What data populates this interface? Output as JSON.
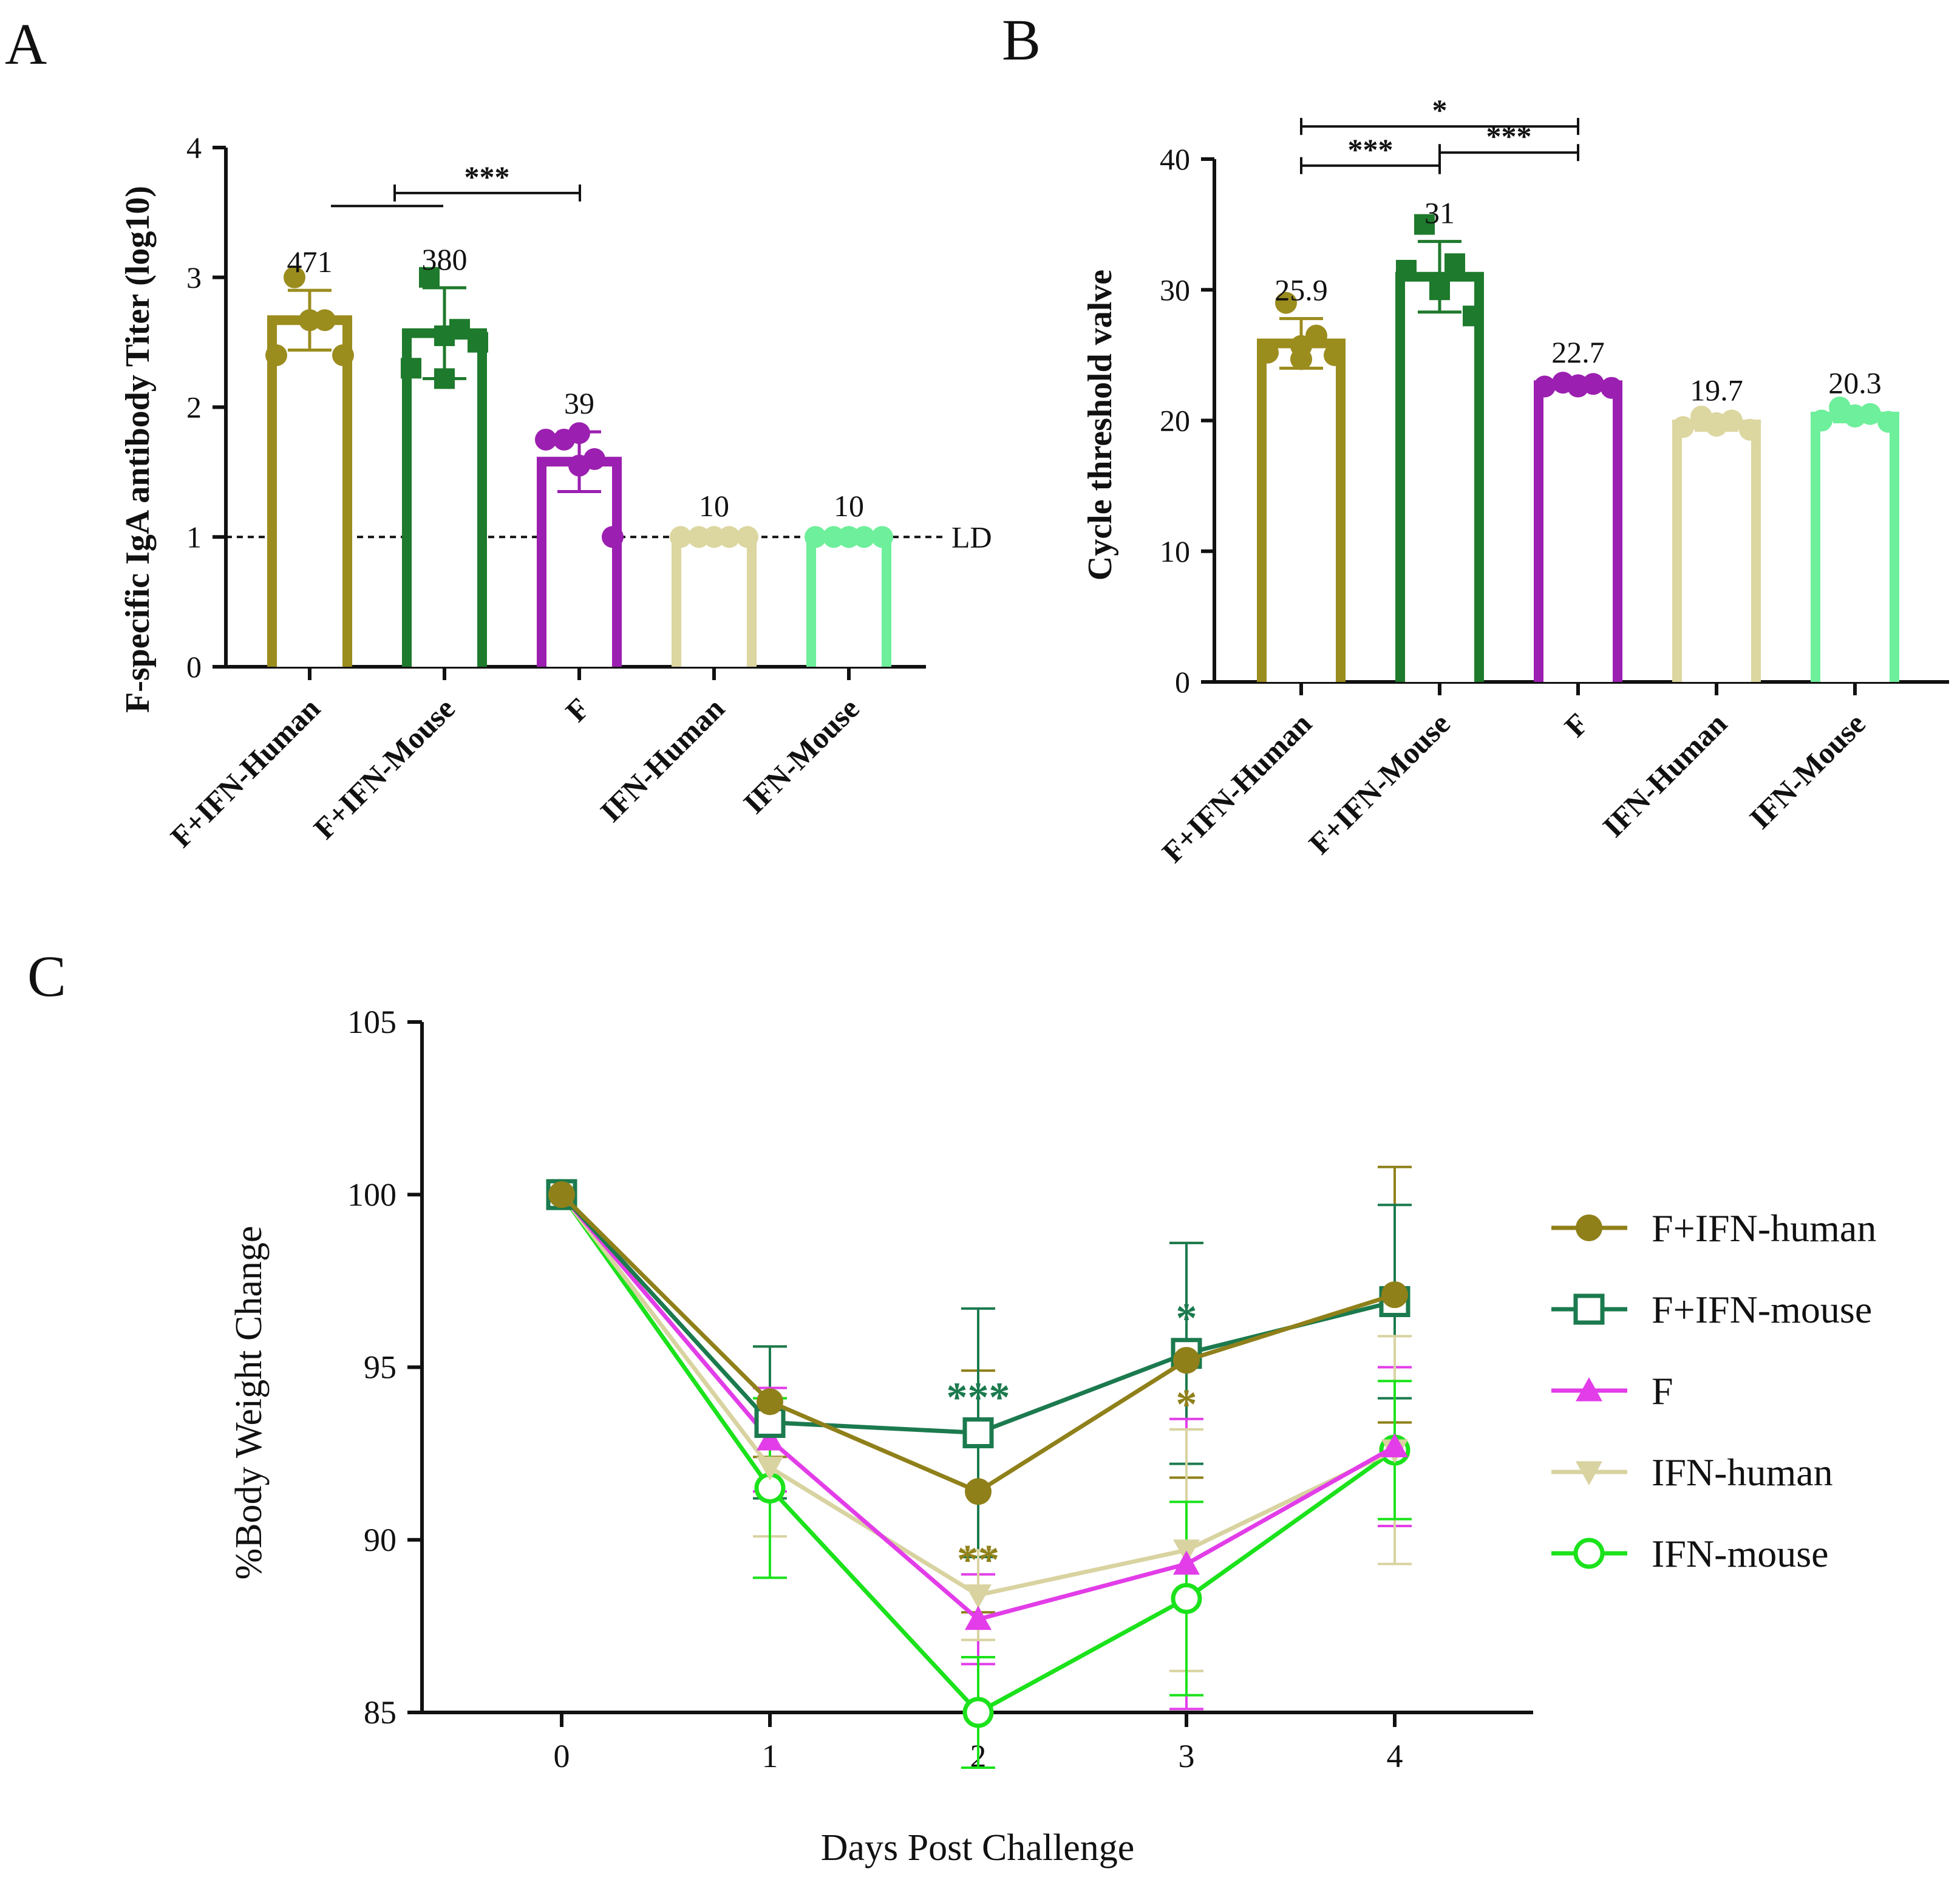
{
  "panels": {
    "A": {
      "letter": "A",
      "chart_data": {
        "type": "bar",
        "ylabel": "F-specific IgA antibody  Titer (log10)",
        "ylim": [
          0,
          4
        ],
        "yticks": [
          0,
          1,
          2,
          3,
          4
        ],
        "categories": [
          "F+IFN-Human",
          "F+IFN-Mouse",
          "F",
          "IFN-Human",
          "IFN-Mouse"
        ],
        "colors": [
          "#9b8c1e",
          "#1e7a2c",
          "#9b1fb0",
          "#dcd6a0",
          "#6eef9b"
        ],
        "values": [
          2.67,
          2.57,
          1.58,
          1.0,
          1.0
        ],
        "sd": [
          0.23,
          0.35,
          0.23,
          0.02,
          0.02
        ],
        "value_labels": [
          "471",
          "380",
          "39",
          "10",
          "10"
        ],
        "points": [
          [
            3.0,
            2.67,
            2.4,
            2.67,
            2.4,
            2.67
          ],
          [
            3.0,
            2.6,
            2.3,
            2.55,
            2.5,
            2.22
          ],
          [
            1.75,
            1.6,
            1.75,
            1.8,
            1.0,
            1.55
          ],
          [
            1.0,
            1.0,
            1.0,
            1.0,
            1.0,
            1.0
          ],
          [
            1.0,
            1.0,
            1.0,
            1.0,
            1.0,
            1.0
          ]
        ],
        "markers": [
          "circle",
          "square",
          "circle",
          "circle",
          "circle"
        ],
        "reference_line": {
          "value": 1,
          "label": "LD"
        },
        "significance": [
          {
            "from": 0,
            "to": 1,
            "label": "",
            "level": 3.55
          },
          {
            "from": 1,
            "to": 2,
            "label": "***",
            "level": 3.65
          }
        ]
      }
    },
    "B": {
      "letter": "B",
      "chart_data": {
        "type": "bar",
        "ylabel": "Cycle threshold valve",
        "ylim": [
          0,
          40
        ],
        "yticks": [
          0,
          10,
          20,
          30,
          40
        ],
        "categories": [
          "F+IFN-Human",
          "F+IFN-Mouse",
          "F",
          "IFN-Human",
          "IFN-Mouse"
        ],
        "colors": [
          "#9b8c1e",
          "#1e7a2c",
          "#9b1fb0",
          "#dcd6a0",
          "#6eef9b"
        ],
        "values": [
          25.9,
          31.0,
          22.7,
          19.7,
          20.3
        ],
        "sd": [
          1.9,
          2.7,
          0.35,
          0.45,
          0.4
        ],
        "value_labels": [
          "25.9",
          "31",
          "22.7",
          "19.7",
          "20.3"
        ],
        "points": [
          [
            29.0,
            26.5,
            25.2,
            24.7,
            25.0,
            25.7
          ],
          [
            35.0,
            32.0,
            31.5,
            30.2,
            28.0,
            30.0
          ],
          [
            22.9,
            22.8,
            22.6,
            22.7,
            22.5,
            22.6
          ],
          [
            20.3,
            20.0,
            19.5,
            19.8,
            19.3,
            19.6
          ],
          [
            21.0,
            20.5,
            20.0,
            20.3,
            19.9,
            20.4
          ]
        ],
        "markers": [
          "circle",
          "square",
          "circle",
          "circle",
          "circle"
        ],
        "significance": [
          {
            "from": 0,
            "to": 2,
            "label": "*",
            "level": 42.5
          },
          {
            "from": 0,
            "to": 1,
            "label": "***",
            "level": 39.5
          },
          {
            "from": 1,
            "to": 2,
            "label": "***",
            "level": 40.5
          }
        ]
      }
    },
    "C": {
      "letter": "C",
      "chart_data": {
        "type": "line",
        "xlabel": "Days Post Challenge",
        "ylabel": "%Body Weight Change",
        "x": [
          0,
          1,
          2,
          3,
          4
        ],
        "xticks": [
          "0",
          "1",
          "2",
          "3",
          "4"
        ],
        "ylim": [
          85,
          105
        ],
        "yticks": [
          85,
          90,
          95,
          100,
          105
        ],
        "legend_position": "right",
        "series": [
          {
            "name": "F+IFN-human",
            "color": "#8f801a",
            "marker": "circle-filled",
            "values": [
              100,
              94.0,
              91.4,
              95.2,
              97.1
            ],
            "sd": [
              0,
              1.6,
              3.5,
              3.4,
              3.7
            ],
            "annotations": [
              {
                "x": 2,
                "label": "**",
                "offset": -2.0
              },
              {
                "x": 3,
                "label": "*",
                "offset": -1.3
              }
            ]
          },
          {
            "name": "F+IFN-mouse",
            "color": "#1b7a4e",
            "marker": "square-open",
            "values": [
              100,
              93.4,
              93.1,
              95.4,
              96.9
            ],
            "sd": [
              0,
              2.2,
              3.6,
              3.2,
              2.8
            ],
            "annotations": [
              {
                "x": 2,
                "label": "***",
                "offset": 1.0
              },
              {
                "x": 3,
                "label": "*",
                "offset": 1.0
              }
            ]
          },
          {
            "name": "F",
            "color": "#e23de8",
            "marker": "triangle-up",
            "values": [
              100,
              92.9,
              87.7,
              89.3,
              92.7
            ],
            "sd": [
              0,
              1.5,
              1.3,
              4.2,
              2.3
            ],
            "annotations": []
          },
          {
            "name": "IFN-human",
            "color": "#d8d3a0",
            "marker": "triangle-down",
            "values": [
              100,
              92.1,
              88.4,
              89.7,
              92.6
            ],
            "sd": [
              0,
              2.0,
              1.3,
              3.5,
              3.3
            ],
            "annotations": []
          },
          {
            "name": "IFN-mouse",
            "color": "#1be21b",
            "marker": "circle-open",
            "values": [
              100,
              91.5,
              85.0,
              88.3,
              92.6
            ],
            "sd": [
              0,
              2.6,
              1.6,
              2.8,
              2.0
            ],
            "annotations": []
          }
        ]
      }
    }
  }
}
